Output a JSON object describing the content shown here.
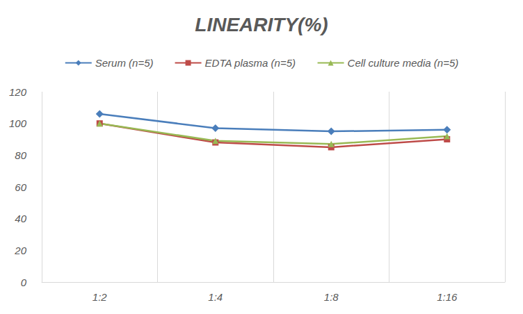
{
  "chart_data": {
    "type": "line",
    "title": "LINEARITY(%)",
    "categories": [
      "1:2",
      "1:4",
      "1:8",
      "1:16"
    ],
    "series": [
      {
        "name": "Serum (n=5)",
        "color": "#4a7ebb",
        "marker": "diamond",
        "values": [
          106,
          97,
          95,
          96
        ]
      },
      {
        "name": "EDTA plasma (n=5)",
        "color": "#be4b48",
        "marker": "rect",
        "values": [
          100,
          88,
          85,
          90
        ]
      },
      {
        "name": "Cell culture media (n=5)",
        "color": "#98b954",
        "marker": "triangle",
        "values": [
          100,
          89,
          87,
          92
        ]
      }
    ],
    "ylim": [
      0,
      120
    ],
    "yticks": [
      0,
      20,
      40,
      60,
      80,
      100,
      120
    ],
    "grid": true,
    "legend": "top"
  }
}
